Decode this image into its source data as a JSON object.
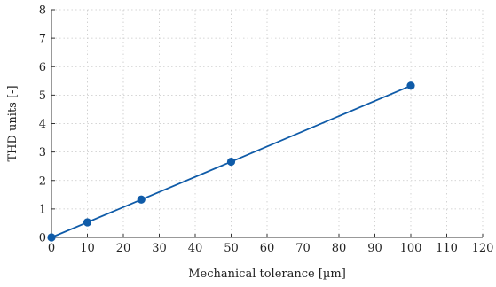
{
  "chart_data": {
    "type": "line",
    "xlabel": "Mechanical tolerance [µm]",
    "ylabel": "THD units [-]",
    "xlim": [
      0,
      120
    ],
    "ylim": [
      0,
      8
    ],
    "xticks": [
      0,
      10,
      20,
      30,
      40,
      50,
      60,
      70,
      80,
      90,
      100,
      110,
      120
    ],
    "yticks": [
      0,
      1,
      2,
      3,
      4,
      5,
      6,
      7,
      8
    ],
    "grid": true,
    "series": [
      {
        "x": [
          0,
          10,
          25,
          50,
          100
        ],
        "y": [
          0,
          0.53,
          1.33,
          2.66,
          5.33
        ],
        "color": "#0f5ba8",
        "marker": "circle"
      }
    ]
  }
}
